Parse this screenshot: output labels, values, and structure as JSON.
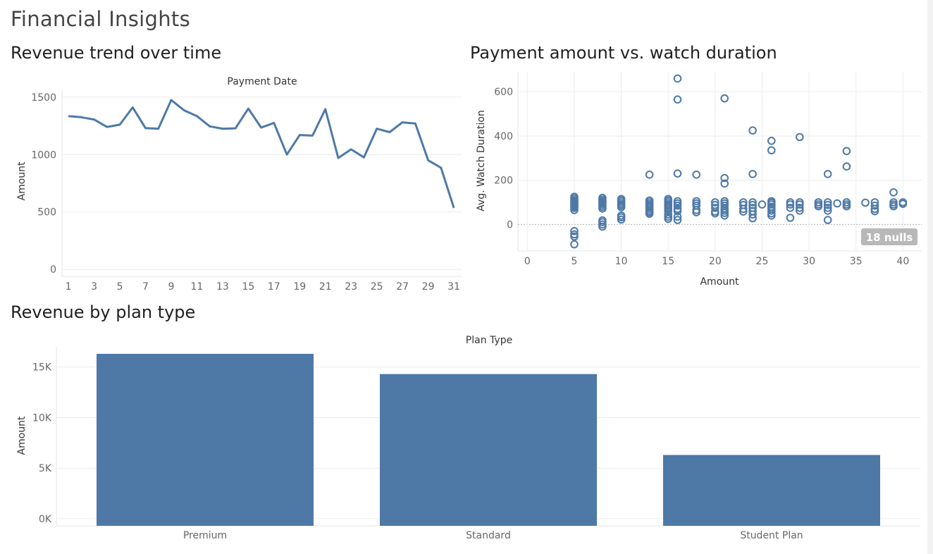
{
  "dashboard": {
    "title": "Financial Insights"
  },
  "colors": {
    "mark": "#4e79a7",
    "null_badge_bg": "#b8b8b8",
    "null_badge_text": "#ffffff"
  },
  "chart_data": [
    {
      "type": "line",
      "sheet_title": "Revenue trend over time",
      "header": "Payment Date",
      "xlabel": "",
      "ylabel": "Amount",
      "x": [
        1,
        2,
        3,
        4,
        5,
        6,
        7,
        8,
        9,
        10,
        11,
        12,
        13,
        14,
        15,
        16,
        17,
        18,
        19,
        20,
        21,
        22,
        23,
        24,
        25,
        26,
        27,
        28,
        29,
        30,
        31
      ],
      "x_ticks": [
        1,
        3,
        5,
        7,
        9,
        11,
        13,
        15,
        17,
        19,
        21,
        23,
        25,
        27,
        29,
        31
      ],
      "values": [
        1335,
        1325,
        1305,
        1240,
        1260,
        1410,
        1230,
        1225,
        1475,
        1385,
        1335,
        1245,
        1225,
        1228,
        1400,
        1235,
        1275,
        1000,
        1170,
        1165,
        1395,
        970,
        1045,
        975,
        1225,
        1195,
        1280,
        1270,
        950,
        885,
        535
      ],
      "y_ticks": [
        0,
        500,
        1000,
        1500
      ],
      "ylim": [
        -60,
        1560
      ],
      "grid": "horizontal"
    },
    {
      "type": "scatter",
      "sheet_title": "Payment amount vs. watch duration",
      "xlabel": "Amount",
      "ylabel": "Avg. Watch Duration",
      "x_ticks": [
        0,
        5,
        10,
        15,
        20,
        25,
        30,
        35,
        40
      ],
      "y_ticks": [
        0,
        200,
        400,
        600
      ],
      "xlim": [
        -1,
        42
      ],
      "ylim": [
        -120,
        690
      ],
      "null_indicator": "18 nulls",
      "grid": "both",
      "points": [
        [
          5,
          125
        ],
        [
          5,
          118
        ],
        [
          5,
          110
        ],
        [
          5,
          105
        ],
        [
          5,
          100
        ],
        [
          5,
          95
        ],
        [
          5,
          90
        ],
        [
          5,
          85
        ],
        [
          5,
          80
        ],
        [
          5,
          75
        ],
        [
          5,
          65
        ],
        [
          5,
          -30
        ],
        [
          5,
          -45
        ],
        [
          5,
          -55
        ],
        [
          5,
          -90
        ],
        [
          8,
          120
        ],
        [
          8,
          112
        ],
        [
          8,
          105
        ],
        [
          8,
          100
        ],
        [
          8,
          95
        ],
        [
          8,
          88
        ],
        [
          8,
          80
        ],
        [
          8,
          72
        ],
        [
          8,
          18
        ],
        [
          8,
          10
        ],
        [
          8,
          0
        ],
        [
          8,
          -10
        ],
        [
          10,
          115
        ],
        [
          10,
          108
        ],
        [
          10,
          100
        ],
        [
          10,
          92
        ],
        [
          10,
          85
        ],
        [
          10,
          78
        ],
        [
          10,
          40
        ],
        [
          10,
          32
        ],
        [
          10,
          22
        ],
        [
          13,
          225
        ],
        [
          13,
          108
        ],
        [
          13,
          100
        ],
        [
          13,
          92
        ],
        [
          13,
          85
        ],
        [
          13,
          78
        ],
        [
          13,
          70
        ],
        [
          13,
          62
        ],
        [
          13,
          55
        ],
        [
          13,
          48
        ],
        [
          15,
          115
        ],
        [
          15,
          108
        ],
        [
          15,
          100
        ],
        [
          15,
          92
        ],
        [
          15,
          85
        ],
        [
          15,
          78
        ],
        [
          15,
          70
        ],
        [
          15,
          60
        ],
        [
          15,
          45
        ],
        [
          15,
          35
        ],
        [
          15,
          25
        ],
        [
          16,
          660
        ],
        [
          16,
          565
        ],
        [
          16,
          230
        ],
        [
          16,
          105
        ],
        [
          16,
          95
        ],
        [
          16,
          85
        ],
        [
          16,
          70
        ],
        [
          16,
          60
        ],
        [
          16,
          35
        ],
        [
          16,
          20
        ],
        [
          18,
          225
        ],
        [
          18,
          105
        ],
        [
          18,
          95
        ],
        [
          18,
          85
        ],
        [
          18,
          65
        ],
        [
          18,
          55
        ],
        [
          20,
          100
        ],
        [
          20,
          88
        ],
        [
          20,
          75
        ],
        [
          20,
          58
        ],
        [
          20,
          50
        ],
        [
          21,
          570
        ],
        [
          21,
          210
        ],
        [
          21,
          185
        ],
        [
          21,
          105
        ],
        [
          21,
          95
        ],
        [
          21,
          85
        ],
        [
          21,
          72
        ],
        [
          21,
          62
        ],
        [
          21,
          52
        ],
        [
          21,
          40
        ],
        [
          23,
          100
        ],
        [
          23,
          88
        ],
        [
          23,
          70
        ],
        [
          23,
          58
        ],
        [
          24,
          425
        ],
        [
          24,
          228
        ],
        [
          24,
          100
        ],
        [
          24,
          88
        ],
        [
          24,
          75
        ],
        [
          24,
          60
        ],
        [
          24,
          45
        ],
        [
          24,
          28
        ],
        [
          25,
          90
        ],
        [
          26,
          378
        ],
        [
          26,
          335
        ],
        [
          26,
          105
        ],
        [
          26,
          98
        ],
        [
          26,
          90
        ],
        [
          26,
          80
        ],
        [
          26,
          72
        ],
        [
          26,
          62
        ],
        [
          26,
          50
        ],
        [
          26,
          40
        ],
        [
          28,
          100
        ],
        [
          28,
          90
        ],
        [
          28,
          75
        ],
        [
          28,
          30
        ],
        [
          29,
          395
        ],
        [
          29,
          100
        ],
        [
          29,
          90
        ],
        [
          29,
          75
        ],
        [
          29,
          62
        ],
        [
          31,
          100
        ],
        [
          31,
          90
        ],
        [
          31,
          82
        ],
        [
          32,
          228
        ],
        [
          32,
          100
        ],
        [
          32,
          88
        ],
        [
          32,
          75
        ],
        [
          32,
          62
        ],
        [
          32,
          20
        ],
        [
          33,
          95
        ],
        [
          34,
          332
        ],
        [
          34,
          262
        ],
        [
          34,
          100
        ],
        [
          34,
          90
        ],
        [
          34,
          82
        ],
        [
          36,
          98
        ],
        [
          37,
          100
        ],
        [
          37,
          85
        ],
        [
          37,
          70
        ],
        [
          37,
          60
        ],
        [
          39,
          145
        ],
        [
          39,
          100
        ],
        [
          39,
          90
        ],
        [
          39,
          82
        ],
        [
          40,
          100
        ],
        [
          40,
          93
        ]
      ]
    },
    {
      "type": "bar",
      "sheet_title": "Revenue by plan type",
      "header": "Plan Type",
      "xlabel": "",
      "ylabel": "Amount",
      "categories": [
        "Premium",
        "Standard",
        "Student Plan"
      ],
      "values": [
        16300,
        14300,
        6300
      ],
      "y_ticks": [
        0,
        5000,
        10000,
        15000
      ],
      "y_tick_labels": [
        "0K",
        "5K",
        "10K",
        "15K"
      ],
      "ylim": [
        -700,
        17000
      ],
      "grid": "horizontal"
    }
  ]
}
